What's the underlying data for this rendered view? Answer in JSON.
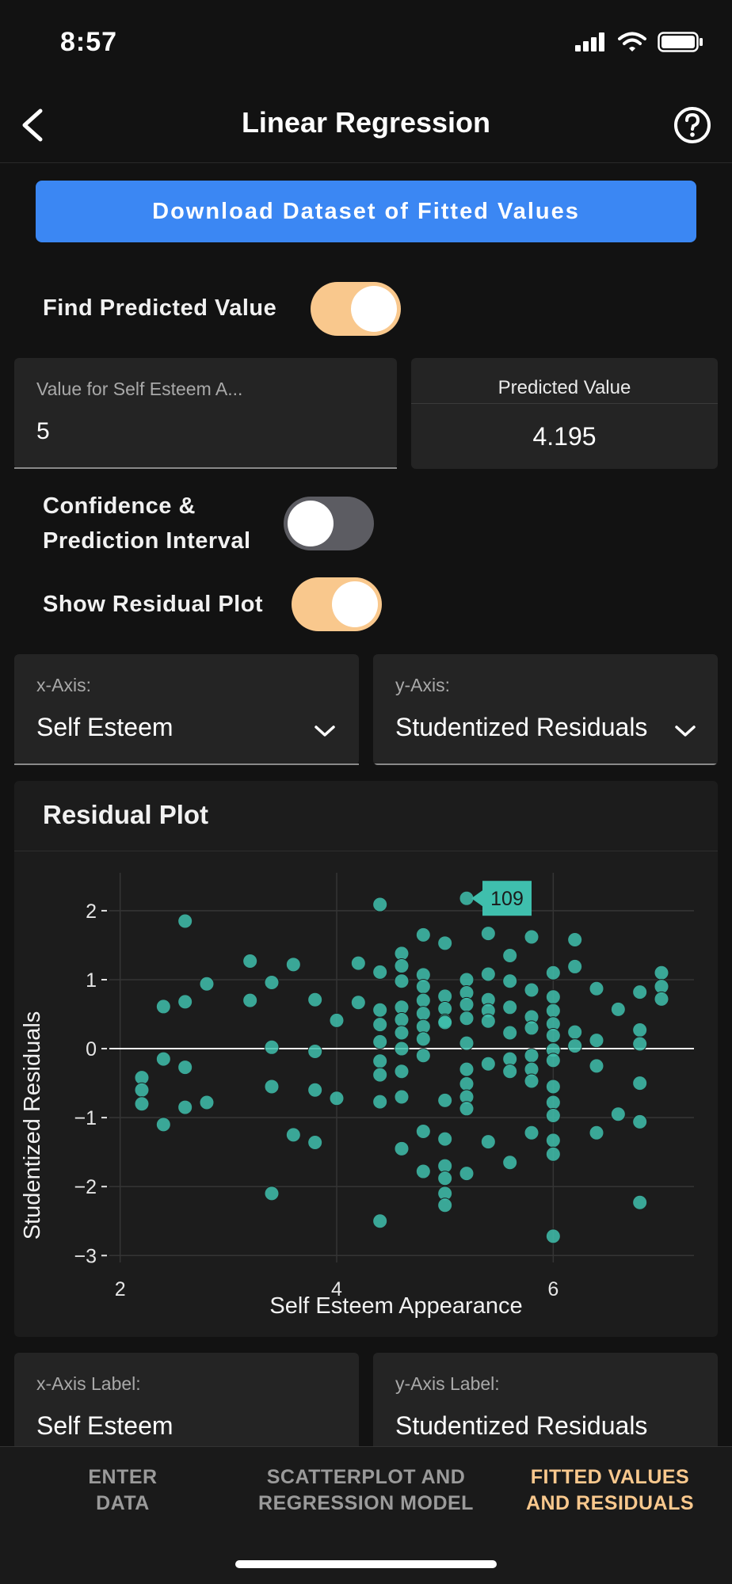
{
  "status_bar": {
    "time": "8:57"
  },
  "header": {
    "title": "Linear Regression"
  },
  "download_button": {
    "label": "Download Dataset of Fitted Values"
  },
  "find_predicted": {
    "label": "Find Predicted Value",
    "enabled": true
  },
  "value_field": {
    "label": "Value for Self Esteem A...",
    "value": "5"
  },
  "predicted": {
    "label": "Predicted Value",
    "value": "4.195"
  },
  "confidence_toggle": {
    "label_line1": "Confidence &",
    "label_line2": "Prediction Interval",
    "enabled": false
  },
  "residual_toggle": {
    "label": "Show Residual Plot",
    "enabled": true
  },
  "x_axis_select": {
    "label": "x-Axis:",
    "value": "Self Esteem"
  },
  "y_axis_select": {
    "label": "y-Axis:",
    "value": "Studentized Residuals"
  },
  "plot": {
    "title": "Residual Plot"
  },
  "chart_data": {
    "type": "scatter",
    "xlabel": "Self Esteem Appearance",
    "ylabel": "Studentized Residuals",
    "xlim": [
      1.9,
      7.3
    ],
    "ylim": [
      -3.1,
      2.55
    ],
    "xticks": [
      2,
      4,
      6
    ],
    "yticks": [
      2,
      1,
      0,
      -1,
      -2,
      -3
    ],
    "ytick_labels": [
      "2",
      "1",
      "0",
      "−1",
      "−2",
      "−3"
    ],
    "tooltip": {
      "label": "109",
      "x": 5.2,
      "y": 2.18
    },
    "points": [
      [
        2.2,
        -0.42
      ],
      [
        2.2,
        -0.6
      ],
      [
        2.2,
        -0.8
      ],
      [
        2.4,
        0.61
      ],
      [
        2.4,
        -0.15
      ],
      [
        2.4,
        -1.1
      ],
      [
        2.6,
        1.85
      ],
      [
        2.6,
        0.68
      ],
      [
        2.6,
        -0.27
      ],
      [
        2.6,
        -0.85
      ],
      [
        2.8,
        0.94
      ],
      [
        2.8,
        -0.78
      ],
      [
        3.2,
        1.27
      ],
      [
        3.2,
        0.7
      ],
      [
        3.4,
        0.96
      ],
      [
        3.4,
        0.02
      ],
      [
        3.4,
        -0.55
      ],
      [
        3.4,
        -2.1
      ],
      [
        3.6,
        1.22
      ],
      [
        3.6,
        -1.25
      ],
      [
        3.8,
        0.71
      ],
      [
        3.8,
        -0.04
      ],
      [
        3.8,
        -0.6
      ],
      [
        3.8,
        -1.36
      ],
      [
        4.0,
        0.41
      ],
      [
        4.0,
        -0.72
      ],
      [
        4.2,
        1.24
      ],
      [
        4.2,
        0.67
      ],
      [
        4.4,
        2.09
      ],
      [
        4.4,
        1.11
      ],
      [
        4.4,
        0.56
      ],
      [
        4.4,
        0.35
      ],
      [
        4.4,
        0.1
      ],
      [
        4.4,
        -0.18
      ],
      [
        4.4,
        -0.38
      ],
      [
        4.4,
        -0.77
      ],
      [
        4.4,
        -2.5
      ],
      [
        4.6,
        1.38
      ],
      [
        4.6,
        1.2
      ],
      [
        4.6,
        0.98
      ],
      [
        4.6,
        0.6
      ],
      [
        4.6,
        0.42
      ],
      [
        4.6,
        0.23
      ],
      [
        4.6,
        0.0
      ],
      [
        4.6,
        -0.33
      ],
      [
        4.6,
        -0.7
      ],
      [
        4.6,
        -1.45
      ],
      [
        4.8,
        1.65
      ],
      [
        4.8,
        1.07
      ],
      [
        4.8,
        0.9
      ],
      [
        4.8,
        0.7
      ],
      [
        4.8,
        0.51
      ],
      [
        4.8,
        0.32
      ],
      [
        4.8,
        0.14
      ],
      [
        4.8,
        -0.1
      ],
      [
        4.8,
        -1.2
      ],
      [
        4.8,
        -1.78
      ],
      [
        5.0,
        1.53
      ],
      [
        5.0,
        0.76
      ],
      [
        5.0,
        0.58
      ],
      [
        5.0,
        0.4
      ],
      [
        5.0,
        0.38
      ],
      [
        5.0,
        -0.75
      ],
      [
        5.0,
        -1.31
      ],
      [
        5.0,
        -1.7
      ],
      [
        5.0,
        -1.88
      ],
      [
        5.0,
        -2.1
      ],
      [
        5.0,
        -2.27
      ],
      [
        5.2,
        2.18
      ],
      [
        5.2,
        1.0
      ],
      [
        5.2,
        0.81
      ],
      [
        5.2,
        0.64
      ],
      [
        5.2,
        0.44
      ],
      [
        5.2,
        0.08
      ],
      [
        5.2,
        -0.3
      ],
      [
        5.2,
        -0.51
      ],
      [
        5.2,
        -0.7
      ],
      [
        5.2,
        -0.87
      ],
      [
        5.2,
        -1.81
      ],
      [
        5.4,
        1.67
      ],
      [
        5.4,
        1.08
      ],
      [
        5.4,
        0.71
      ],
      [
        5.4,
        0.55
      ],
      [
        5.4,
        0.4
      ],
      [
        5.4,
        -0.22
      ],
      [
        5.4,
        -1.35
      ],
      [
        5.6,
        1.35
      ],
      [
        5.6,
        0.98
      ],
      [
        5.6,
        0.6
      ],
      [
        5.6,
        0.23
      ],
      [
        5.6,
        -0.15
      ],
      [
        5.6,
        -0.33
      ],
      [
        5.6,
        -1.65
      ],
      [
        5.8,
        1.62
      ],
      [
        5.8,
        0.85
      ],
      [
        5.8,
        0.46
      ],
      [
        5.8,
        0.3
      ],
      [
        5.8,
        -0.1
      ],
      [
        5.8,
        -0.3
      ],
      [
        5.8,
        -0.47
      ],
      [
        5.8,
        -1.22
      ],
      [
        6.0,
        1.1
      ],
      [
        6.0,
        0.75
      ],
      [
        6.0,
        0.55
      ],
      [
        6.0,
        0.36
      ],
      [
        6.0,
        0.19
      ],
      [
        6.0,
        -0.02
      ],
      [
        6.0,
        -0.17
      ],
      [
        6.0,
        -0.55
      ],
      [
        6.0,
        -0.78
      ],
      [
        6.0,
        -0.97
      ],
      [
        6.0,
        -1.33
      ],
      [
        6.0,
        -1.53
      ],
      [
        6.0,
        -2.72
      ],
      [
        6.2,
        1.58
      ],
      [
        6.2,
        1.19
      ],
      [
        6.2,
        0.24
      ],
      [
        6.2,
        0.04
      ],
      [
        6.4,
        0.87
      ],
      [
        6.4,
        0.12
      ],
      [
        6.4,
        -0.25
      ],
      [
        6.4,
        -1.22
      ],
      [
        6.6,
        0.57
      ],
      [
        6.6,
        -0.95
      ],
      [
        6.8,
        0.82
      ],
      [
        6.8,
        0.27
      ],
      [
        6.8,
        0.07
      ],
      [
        6.8,
        -0.5
      ],
      [
        6.8,
        -1.06
      ],
      [
        6.8,
        -2.23
      ],
      [
        7.0,
        1.1
      ],
      [
        7.0,
        0.9
      ],
      [
        7.0,
        0.72
      ]
    ]
  },
  "x_label_field": {
    "label": "x-Axis Label:",
    "value": "Self Esteem"
  },
  "y_label_field": {
    "label": "y-Axis Label:",
    "value": "Studentized Residuals"
  },
  "tabs": [
    {
      "line1": "ENTER",
      "line2": "DATA"
    },
    {
      "line1": "SCATTERPLOT AND",
      "line2": "REGRESSION MODEL"
    },
    {
      "line1": "FITTED VALUES",
      "line2": "AND RESIDUALS"
    }
  ],
  "colors": {
    "accent": "#f9c88d",
    "primary_button": "#3b87f3",
    "point_fill": "#3fbfad"
  }
}
